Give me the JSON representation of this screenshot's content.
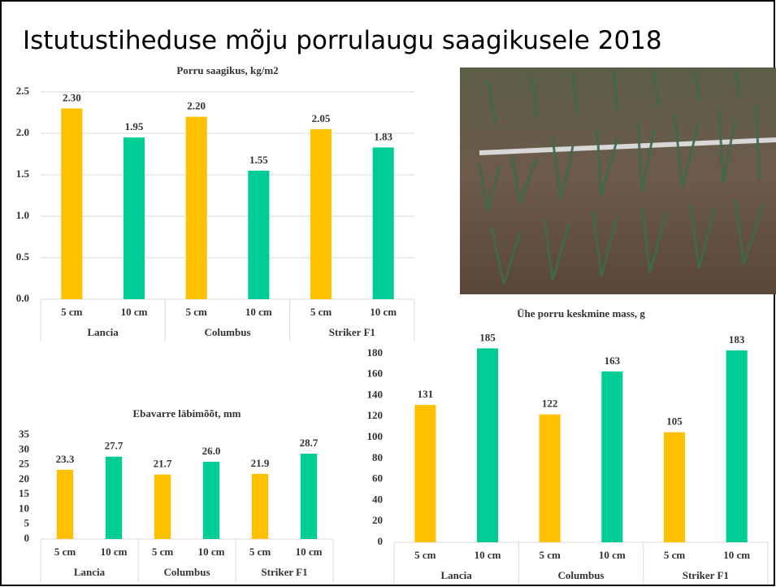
{
  "title": "Istutustiheduse mõju porrulaugu saagikusele 2018",
  "chart_data": [
    {
      "type": "bar",
      "title": "Porru saagikus, kg/m2",
      "categories": [
        "5 cm",
        "10 cm",
        "5 cm",
        "10 cm",
        "5 cm",
        "10 cm"
      ],
      "groups": [
        "Lancia",
        "Columbus",
        "Striker F1"
      ],
      "values": [
        2.3,
        1.95,
        2.2,
        1.55,
        2.05,
        1.83
      ],
      "value_labels": [
        "2.30",
        "1.95",
        "2.20",
        "1.55",
        "2.05",
        "1.83"
      ],
      "colors": [
        "#ffc000",
        "#00cc96"
      ],
      "ylim": [
        0,
        2.5
      ],
      "yticks": [
        {
          "value": 0,
          "label": "0.0"
        },
        {
          "value": 0.5,
          "label": "0.5"
        },
        {
          "value": 1,
          "label": "1.0"
        },
        {
          "value": 1.5,
          "label": "1.5"
        },
        {
          "value": 2,
          "label": "2.0"
        },
        {
          "value": 2.5,
          "label": "2.5"
        }
      ],
      "grid": true
    },
    {
      "type": "bar",
      "title": "Ebavarre läbimõõt, mm",
      "categories": [
        "5 cm",
        "10 cm",
        "5 cm",
        "10 cm",
        "5 cm",
        "10 cm"
      ],
      "groups": [
        "Lancia",
        "Columbus",
        "Striker F1"
      ],
      "values": [
        23.3,
        27.7,
        21.7,
        26,
        21.9,
        28.7
      ],
      "value_labels": [
        "23.3",
        "27.7",
        "21.7",
        "26.0",
        "21.9",
        "28.7"
      ],
      "colors": [
        "#ffc000",
        "#00cc96"
      ],
      "ylim": [
        0,
        35
      ],
      "yticks": [
        0,
        5,
        10,
        15,
        20,
        25,
        30,
        35
      ],
      "grid": false
    },
    {
      "type": "bar",
      "title": "Ühe porru keskmine mass, g",
      "categories": [
        "5 cm",
        "10 cm",
        "5 cm",
        "10 cm",
        "5 cm",
        "10 cm"
      ],
      "groups": [
        "Lancia",
        "Columbus",
        "Striker F1"
      ],
      "values": [
        131,
        185,
        122,
        163,
        105,
        183
      ],
      "colors": [
        "#ffc000",
        "#00cc96"
      ],
      "ylim": [
        0,
        190
      ],
      "yticks": [
        0,
        20,
        40,
        60,
        80,
        100,
        120,
        140,
        160,
        180
      ],
      "grid": false
    }
  ]
}
